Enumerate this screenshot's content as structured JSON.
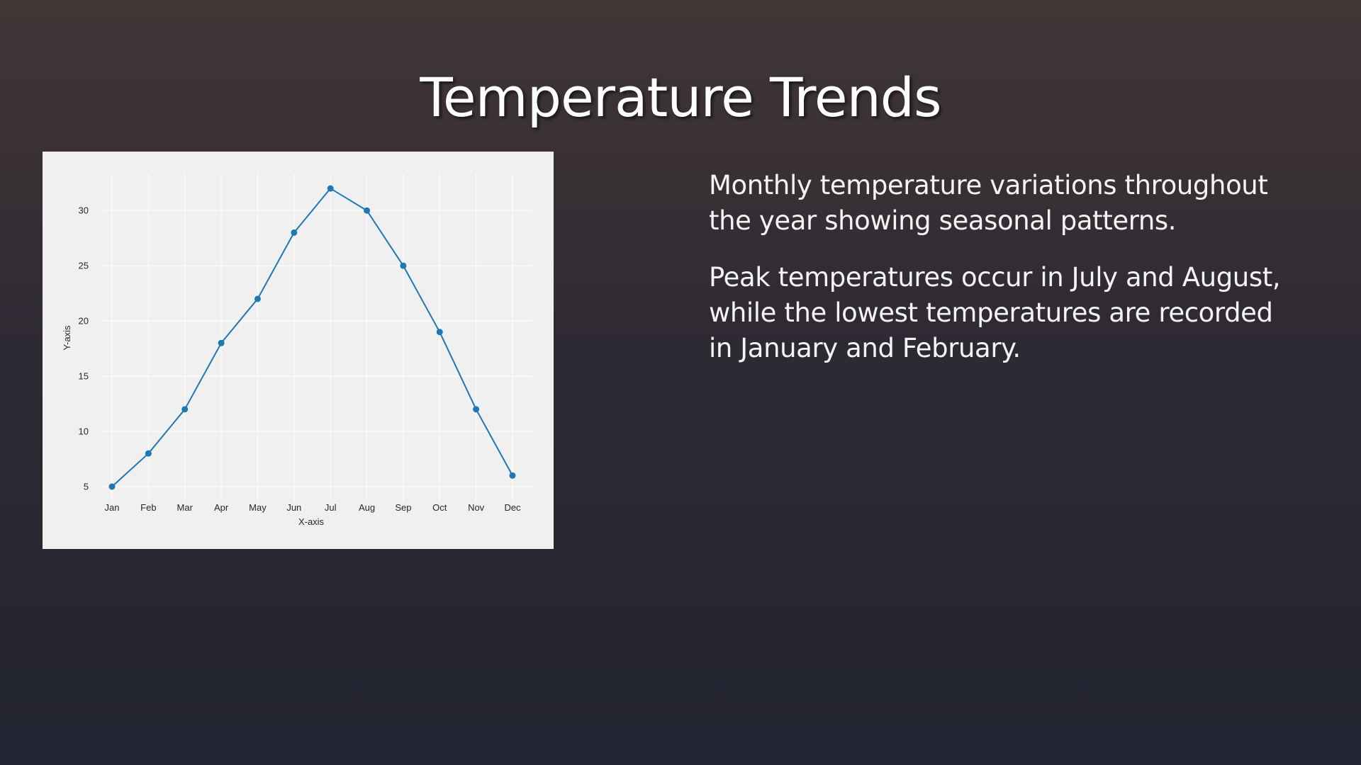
{
  "slide": {
    "title": "Temperature Trends",
    "paragraphs": [
      "Monthly temperature variations throughout the year showing seasonal patterns.",
      "Peak temperatures occur in July and August, while the lowest temperatures are recorded in January and February."
    ]
  },
  "chart_data": {
    "type": "line",
    "categories": [
      "Jan",
      "Feb",
      "Mar",
      "Apr",
      "May",
      "Jun",
      "Jul",
      "Aug",
      "Sep",
      "Oct",
      "Nov",
      "Dec"
    ],
    "values": [
      5,
      8,
      12,
      18,
      22,
      28,
      32,
      30,
      25,
      19,
      12,
      6
    ],
    "title": "",
    "xlabel": "X-axis",
    "ylabel": "Y-axis",
    "yticks": [
      5,
      10,
      15,
      20,
      25,
      30
    ],
    "ylim": [
      3.65,
      33.35
    ],
    "grid": true,
    "line_color": "#1f77b4",
    "background_color": "#f0f0f0",
    "grid_color": "#ffffff"
  }
}
